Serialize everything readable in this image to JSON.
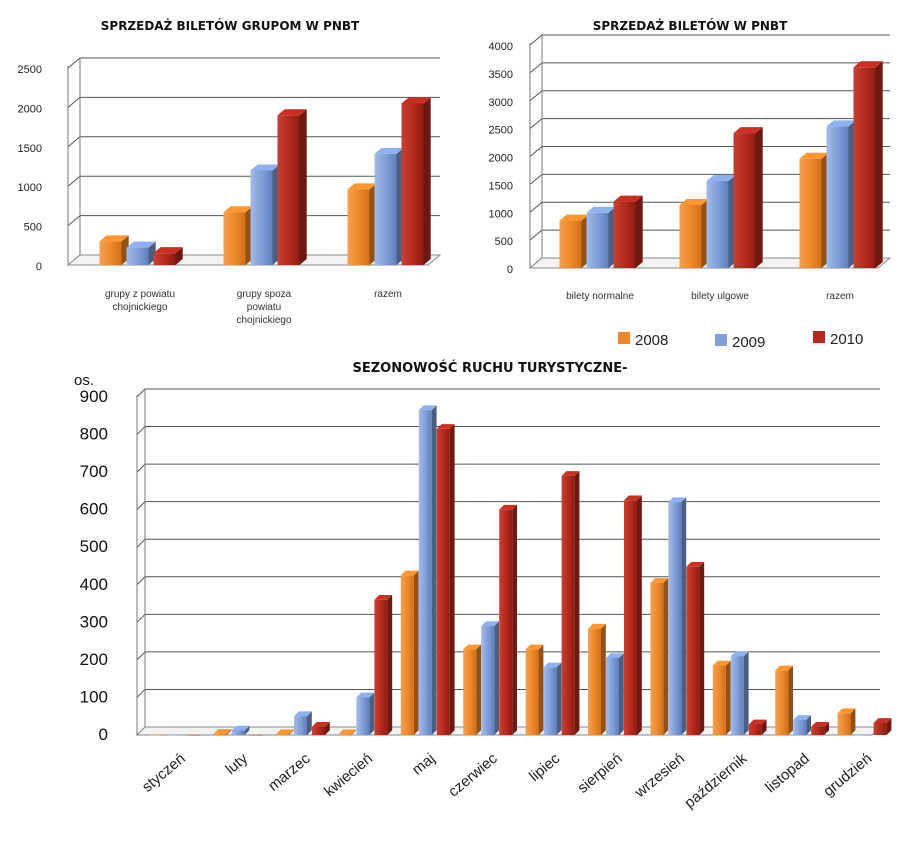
{
  "colors": {
    "2008": "#f0872c",
    "2009": "#7f9fd6",
    "2010": "#b52a1e"
  },
  "legend": [
    {
      "label": "2008",
      "color": "#f0872c"
    },
    {
      "label": "2009",
      "color": "#7f9fd6"
    },
    {
      "label": "2010",
      "color": "#b52a1e"
    }
  ],
  "chart_data": [
    {
      "type": "bar",
      "title": "SPRZEDAŻ BILETÓW GRUPOM W PNBT",
      "categories": [
        [
          "grupy z powiatu",
          "chojnickiego"
        ],
        [
          "grupy spoza",
          "powiatu",
          "chojnickiego"
        ],
        [
          "razem"
        ]
      ],
      "series": [
        {
          "name": "2008",
          "values": [
            300,
            670,
            960
          ]
        },
        {
          "name": "2009",
          "values": [
            220,
            1200,
            1410
          ]
        },
        {
          "name": "2010",
          "values": [
            150,
            1900,
            2050
          ]
        }
      ],
      "yticks": [
        "0",
        "500",
        "1000",
        "1500",
        "2000",
        "2500"
      ],
      "ylim": [
        0,
        2500
      ],
      "grid": true
    },
    {
      "type": "bar",
      "title": "SPRZEDAŻ BILETÓW W PNBT",
      "categories": [
        [
          "bilety normalne"
        ],
        [
          "bilety ulgowe"
        ],
        [
          "razem"
        ]
      ],
      "series": [
        {
          "name": "2008",
          "values": [
            850,
            1130,
            1960
          ]
        },
        {
          "name": "2009",
          "values": [
            990,
            1560,
            2540
          ]
        },
        {
          "name": "2010",
          "values": [
            1190,
            2420,
            3600
          ]
        }
      ],
      "yticks": [
        "0",
        "500",
        "1000",
        "1500",
        "2000",
        "2500",
        "3000",
        "3500",
        "4000"
      ],
      "ylim": [
        0,
        4000
      ],
      "grid": true
    },
    {
      "type": "bar",
      "title": "SEZONOWOŚĆ RUCHU TURYSTYCZNE-",
      "ylabel": "os.",
      "categories": [
        "styczeń",
        "luty",
        "marzec",
        "kwiecień",
        "maj",
        "czerwiec",
        "lipiec",
        "sierpień",
        "wrzesień",
        "październik",
        "listopad",
        "grudzień"
      ],
      "series": [
        {
          "name": "2008",
          "values": [
            0,
            3,
            2,
            2,
            425,
            228,
            228,
            283,
            405,
            185,
            172,
            58
          ]
        },
        {
          "name": "2009",
          "values": [
            0,
            12,
            50,
            100,
            865,
            290,
            180,
            205,
            620,
            210,
            40,
            0
          ]
        },
        {
          "name": "2010",
          "values": [
            0,
            0,
            22,
            360,
            815,
            600,
            690,
            625,
            448,
            28,
            22,
            32
          ]
        }
      ],
      "yticks": [
        "0",
        "100",
        "200",
        "300",
        "400",
        "500",
        "600",
        "700",
        "800",
        "900"
      ],
      "ylim": [
        0,
        900
      ],
      "grid": true
    }
  ]
}
